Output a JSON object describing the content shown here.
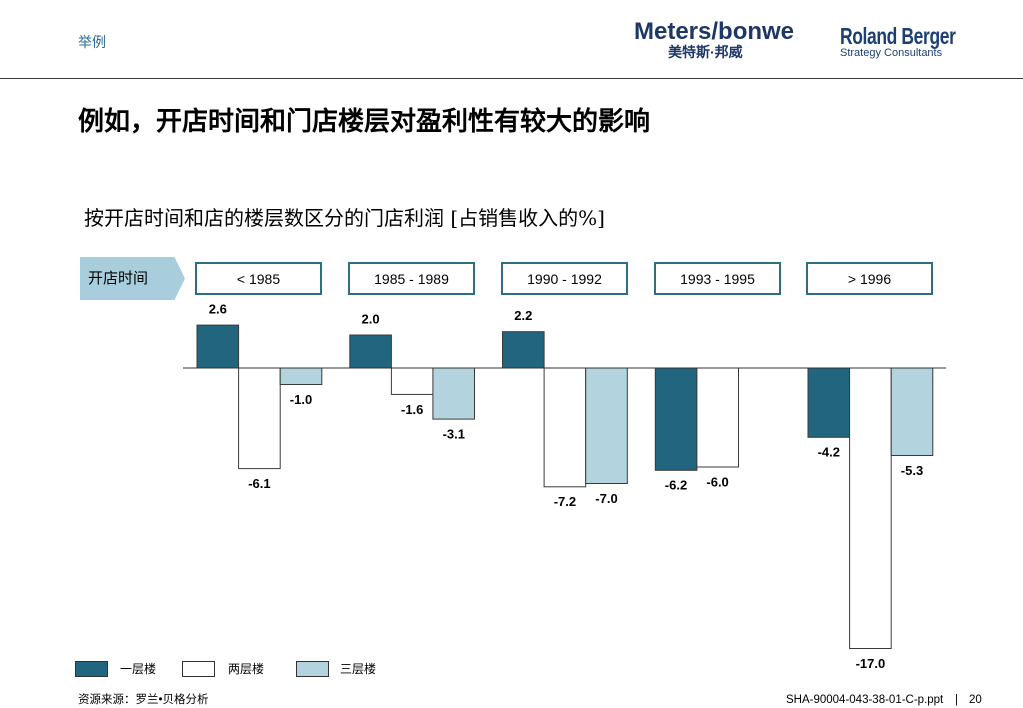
{
  "header": {
    "tag": "举例",
    "logo_meters": "Meters/bonwe",
    "logo_meters_cn": "美特斯·邦威",
    "logo_rb": "Roland Berger",
    "logo_rb_sub": "Strategy Consultants"
  },
  "title": "例如，开店时间和门店楼层对盈利性有较大的影响",
  "chart_data": {
    "type": "bar",
    "title": "按开店时间和店的楼层数区分的门店利润 [占销售收入的%]",
    "xlabel": "开店时间",
    "categories": [
      "< 1985",
      "1985 - 1989",
      "1990 - 1992",
      "1993 - 1995",
      "> 1996"
    ],
    "series": [
      {
        "name": "一层楼",
        "color": "#22657f",
        "values": [
          2.6,
          2.0,
          2.2,
          -6.2,
          -4.2
        ],
        "labels": [
          "2.6",
          "2.0",
          "2.2",
          "-6.2",
          "-4.2"
        ]
      },
      {
        "name": "两层楼",
        "color": "#ffffff",
        "values": [
          -6.1,
          -1.6,
          -7.2,
          -6.0,
          -17.0
        ],
        "labels": [
          "-6.1",
          "-1.6",
          "-7.2",
          "-6.0",
          "-17.0"
        ]
      },
      {
        "name": "三层楼",
        "color": "#b3d3de",
        "values": [
          -1.0,
          -3.1,
          -7.0,
          null,
          -5.3
        ],
        "labels": [
          "-1.0",
          "-3.1",
          "-7.0",
          null,
          "-5.3"
        ]
      }
    ],
    "grid": false,
    "legend_position": "bottom-left"
  },
  "footer": {
    "source": "资源来源：罗兰•贝格分析",
    "file": "SHA-90004-043-38-01-C-p.ppt",
    "separator": "|",
    "page": "20"
  }
}
